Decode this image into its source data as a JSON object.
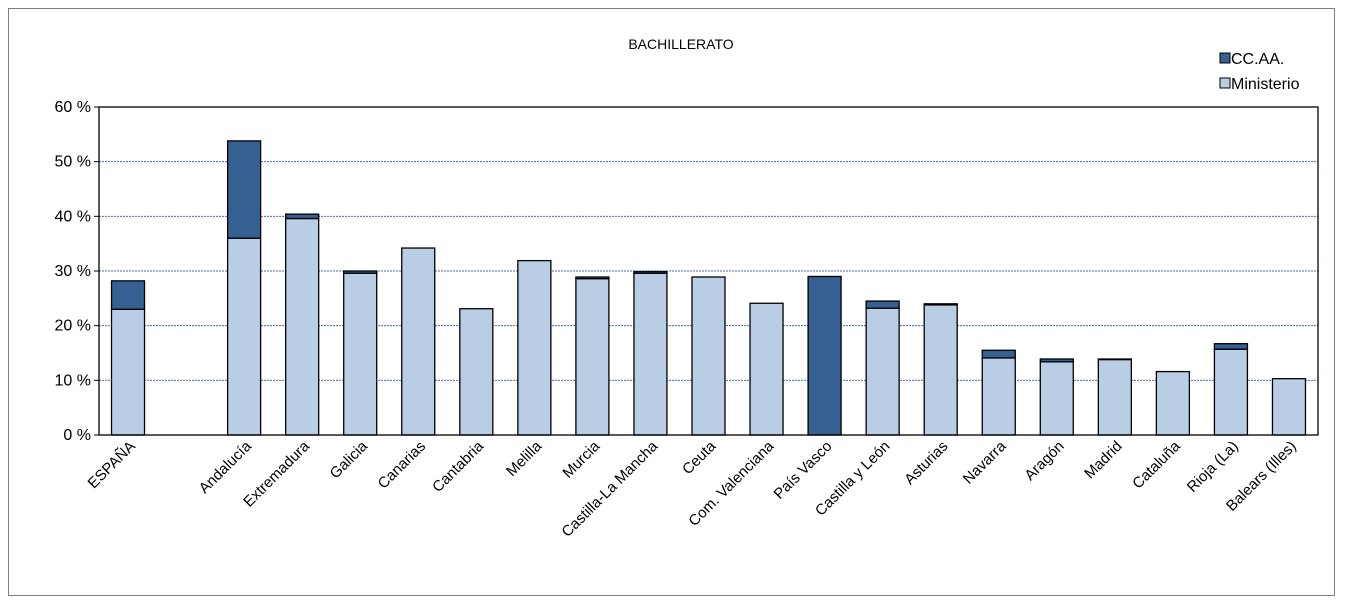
{
  "chart_data": {
    "type": "bar",
    "stacked": true,
    "title": "BACHILLERATO",
    "xlabel": "",
    "ylabel": "",
    "ylim": [
      0,
      60
    ],
    "yticks": [
      "0 %",
      "10 %",
      "20 %",
      "30 %",
      "40 %",
      "50 %",
      "60 %"
    ],
    "grid": true,
    "legend_position": "top-right",
    "categories": [
      "ESPAÑA",
      "",
      "Andalucía",
      "Extremadura",
      "Galicia",
      "Canarias",
      "Cantabria",
      "Melilla",
      "Murcia",
      "Castilla-La Mancha",
      "Ceuta",
      "Com. Valenciana",
      "País Vasco",
      "Castilla y León",
      "Asturias",
      "Navarra",
      "Aragón",
      "Madrid",
      "Cataluña",
      "Rioja (La)",
      "Balears (Illes)"
    ],
    "series": [
      {
        "name": "Ministerio",
        "color": "#b9cde5",
        "values": [
          23.0,
          null,
          36.0,
          39.6,
          29.6,
          34.2,
          23.1,
          31.9,
          28.6,
          29.6,
          28.9,
          24.1,
          0,
          23.2,
          23.8,
          14.1,
          13.4,
          13.8,
          11.6,
          15.7,
          10.3
        ]
      },
      {
        "name": "CC.AA.",
        "color": "#376092",
        "values": [
          5.2,
          null,
          17.8,
          0.8,
          0.4,
          0,
          0,
          0,
          0.3,
          0.3,
          0,
          0,
          29.0,
          1.3,
          0.2,
          1.4,
          0.5,
          0.1,
          0,
          1.0,
          0
        ]
      }
    ],
    "legend": [
      "CC.AA.",
      "Ministerio"
    ]
  }
}
